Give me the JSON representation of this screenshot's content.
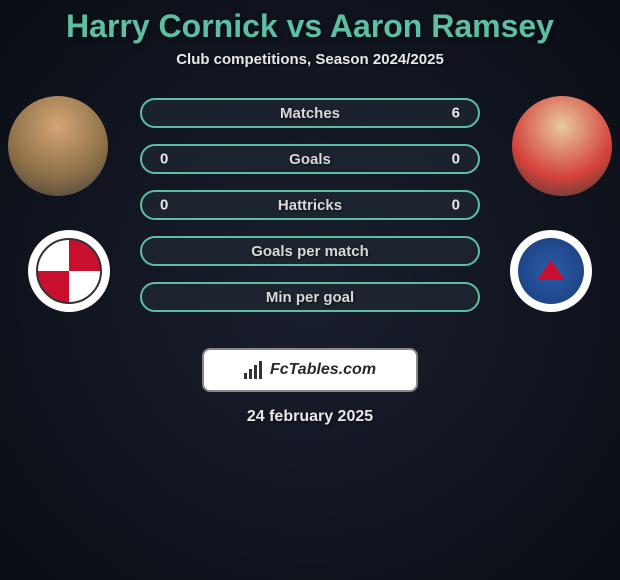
{
  "title": "Harry Cornick vs Aaron Ramsey",
  "subtitle": "Club competitions, Season 2024/2025",
  "date": "24 february 2025",
  "branding": "FcTables.com",
  "colors": {
    "accent": "#5dbea3",
    "pill_border": "#5dbea3",
    "pill_bg": "rgba(32,40,50,0.7)",
    "text": "#e8e8e8",
    "bg_center": "#1a1f2e",
    "bg_edge": "#0a0d14"
  },
  "player1": {
    "name": "Harry Cornick",
    "club": "Bristol City"
  },
  "player2": {
    "name": "Aaron Ramsey",
    "club": "Cardiff City"
  },
  "stats": [
    {
      "label": "Matches",
      "p1": "",
      "p2": "6"
    },
    {
      "label": "Goals",
      "p1": "0",
      "p2": "0"
    },
    {
      "label": "Hattricks",
      "p1": "0",
      "p2": "0"
    },
    {
      "label": "Goals per match",
      "p1": "",
      "p2": ""
    },
    {
      "label": "Min per goal",
      "p1": "",
      "p2": ""
    }
  ]
}
